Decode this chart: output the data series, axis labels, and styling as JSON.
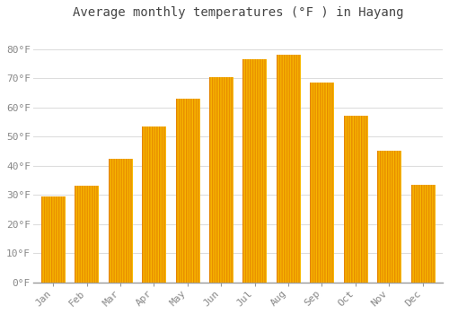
{
  "title": "Average monthly temperatures (°F ) in Hayang",
  "months": [
    "Jan",
    "Feb",
    "Mar",
    "Apr",
    "May",
    "Jun",
    "Jul",
    "Aug",
    "Sep",
    "Oct",
    "Nov",
    "Dec"
  ],
  "values": [
    29.5,
    33.0,
    42.5,
    53.5,
    63.0,
    70.5,
    76.5,
    78.0,
    68.5,
    57.0,
    45.0,
    33.5
  ],
  "bar_color_top": "#FFC200",
  "bar_color_bottom": "#FF8C00",
  "background_color": "#FFFFFF",
  "grid_color": "#DDDDDD",
  "ylim": [
    0,
    88
  ],
  "yticks": [
    0,
    10,
    20,
    30,
    40,
    50,
    60,
    70,
    80
  ],
  "ytick_labels": [
    "0°F",
    "10°F",
    "20°F",
    "30°F",
    "40°F",
    "50°F",
    "60°F",
    "70°F",
    "80°F"
  ],
  "title_fontsize": 10,
  "tick_fontsize": 8,
  "title_color": "#444444",
  "tick_color": "#888888",
  "bar_width": 0.7
}
